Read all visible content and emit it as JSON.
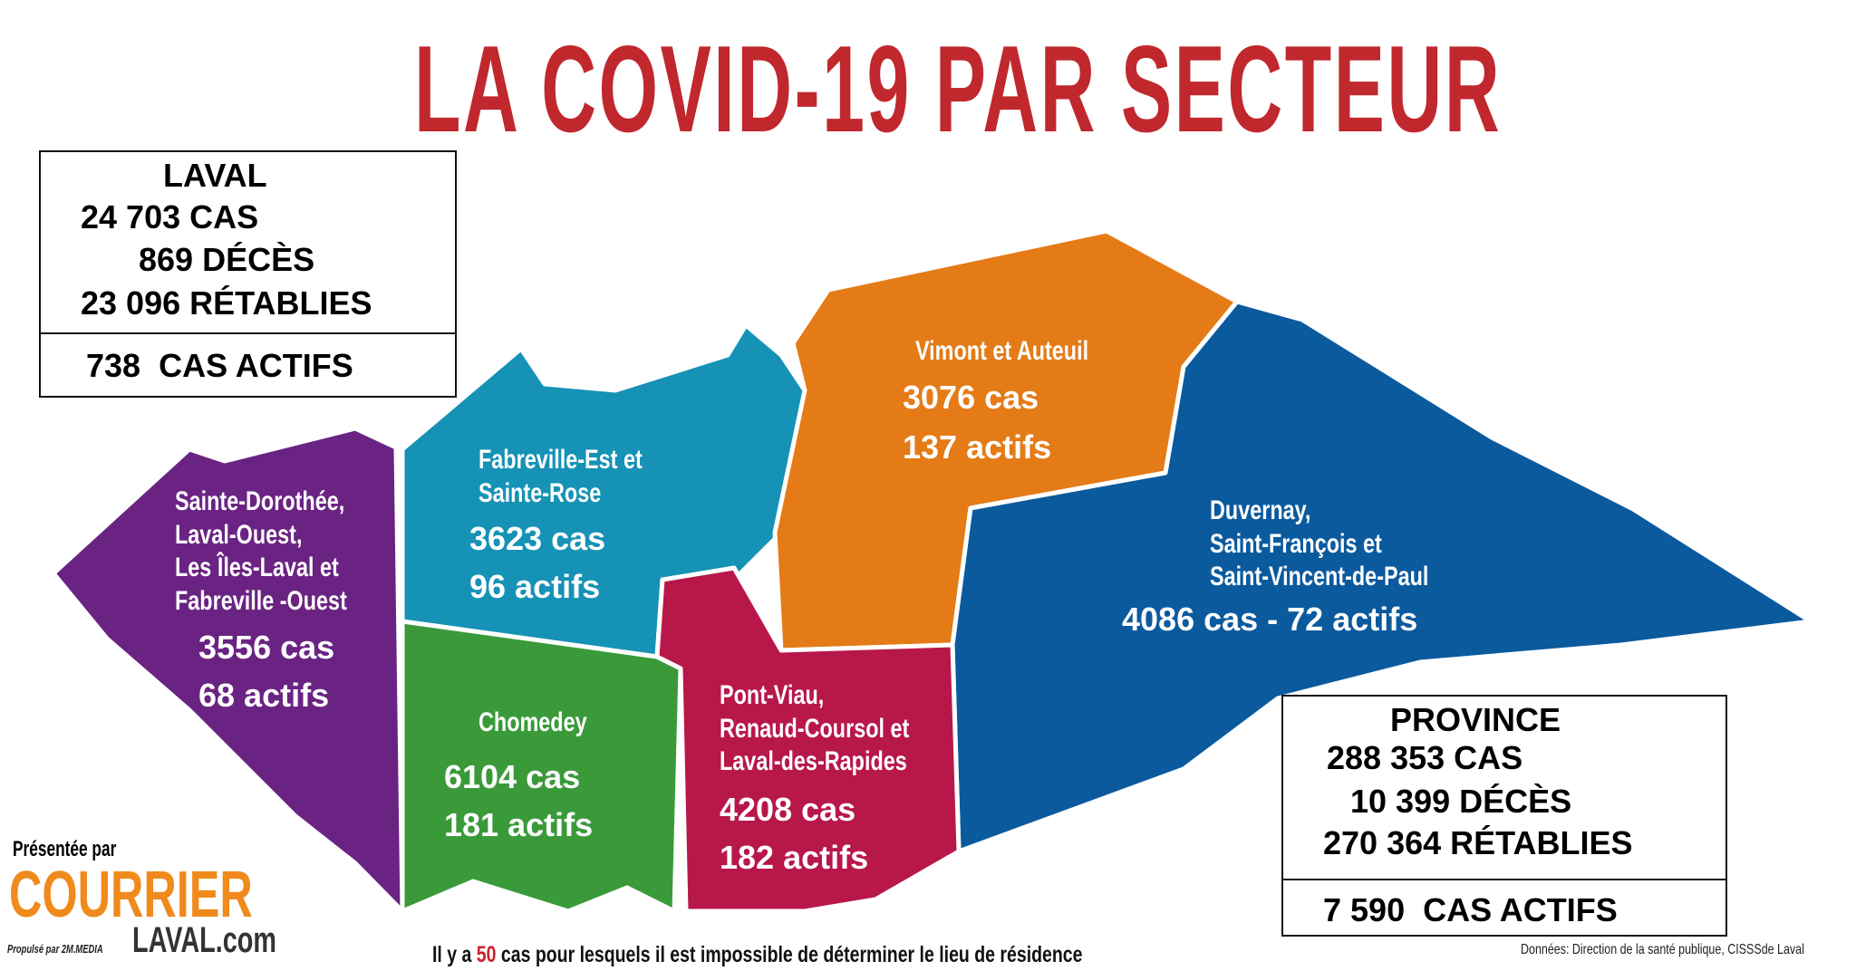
{
  "title": "LA COVID-19 PAR SECTEUR",
  "laval": {
    "heading": "LAVAL",
    "cases": "24 703",
    "cases_label": "CAS",
    "deaths": "869",
    "deaths_label": "DÉCÈS",
    "recovered": "23 096",
    "recovered_label": "RÉTABLIES",
    "active": "738",
    "active_label": "CAS ACTIFS"
  },
  "province": {
    "heading": "PROVINCE",
    "cases": "288 353",
    "cases_label": "CAS",
    "deaths": "10 399",
    "deaths_label": "DÉCÈS",
    "recovered": "270 364",
    "recovered_label": "RÉTABLIES",
    "active": "7 590",
    "active_label": "CAS ACTIFS"
  },
  "sectors": [
    {
      "name_lines": [
        "Sainte-Dorothée,",
        "Laval-Ouest,",
        "Les Îles-Laval et",
        "Fabreville -Ouest"
      ],
      "cases": "3556 cas",
      "active": "68 actifs",
      "color": "#6a2383"
    },
    {
      "name_lines": [
        "Fabreville-Est et",
        "Sainte-Rose"
      ],
      "cases": "3623 cas",
      "active": "96 actifs",
      "color": "#1592b5"
    },
    {
      "name_lines": [
        "Vimont et Auteuil"
      ],
      "cases": "3076 cas",
      "active": "137 actifs",
      "color": "#e47b17"
    },
    {
      "name_lines": [
        "Duvernay,",
        "Saint-François et",
        "Saint-Vincent-de-Paul"
      ],
      "cases_active": "4086 cas - 72 actifs",
      "color": "#0b5a9e"
    },
    {
      "name_lines": [
        "Chomedey"
      ],
      "cases": "6104 cas",
      "active": "181 actifs",
      "color": "#3a9a3a"
    },
    {
      "name_lines": [
        "Pont-Viau,",
        "Renaud-Coursol et",
        "Laval-des-Rapides"
      ],
      "cases": "4208 cas",
      "active": "182 actifs",
      "color": "#b8174a"
    }
  ],
  "sponsor": {
    "presented_by": "Présentée par",
    "logo_top": "COURRIER",
    "logo_powered": "Propulsé par 2M.MEDIA",
    "logo_bottom": "LAVAL.com"
  },
  "footnote": {
    "pre": "Il y a",
    "count": "50",
    "post": "cas pour lesquels il est impossible de déterminer le lieu de résidence"
  },
  "source": "Données: Direction de la santé publique, CISSSde Laval"
}
